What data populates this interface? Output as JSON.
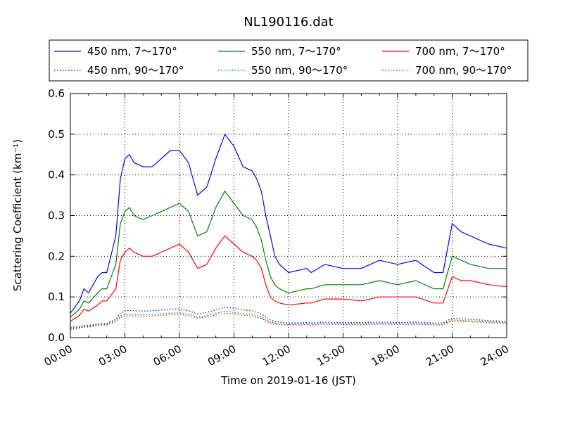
{
  "chart_data": {
    "type": "line",
    "title": "NL190116.dat",
    "xlabel": "Time on 2019-01-16 (JST)",
    "ylabel": "Scattering Coefficient (km⁻¹)",
    "x_unit": "hours",
    "xlim": [
      0,
      24
    ],
    "ylim": [
      0,
      0.6
    ],
    "xticks": [
      0,
      3,
      6,
      9,
      12,
      15,
      18,
      21,
      24
    ],
    "xtick_labels": [
      "00:00",
      "03:00",
      "06:00",
      "09:00",
      "12:00",
      "15:00",
      "18:00",
      "21:00",
      "24:00"
    ],
    "yticks": [
      0.0,
      0.1,
      0.2,
      0.3,
      0.4,
      0.5,
      0.6
    ],
    "ytick_labels": [
      "0.0",
      "0.1",
      "0.2",
      "0.3",
      "0.4",
      "0.5",
      "0.6"
    ],
    "grid": true,
    "legend_position": "top",
    "x": [
      0,
      0.5,
      0.75,
      1,
      1.5,
      1.75,
      2,
      2.5,
      2.75,
      3,
      3.25,
      3.5,
      4,
      4.5,
      5,
      5.5,
      6,
      6.5,
      7,
      7.5,
      8,
      8.5,
      9,
      9.5,
      10,
      10.25,
      10.5,
      10.75,
      11,
      11.25,
      11.5,
      12,
      13,
      13.25,
      14,
      15,
      16,
      17,
      18,
      19,
      20,
      20.5,
      21,
      21.5,
      22,
      23,
      24
    ],
    "series": [
      {
        "name": "450 nm, 7～170°",
        "color": "#0000ff",
        "style": "solid",
        "values": [
          0.06,
          0.09,
          0.12,
          0.11,
          0.15,
          0.16,
          0.16,
          0.25,
          0.39,
          0.44,
          0.45,
          0.43,
          0.42,
          0.42,
          0.44,
          0.46,
          0.46,
          0.43,
          0.35,
          0.37,
          0.44,
          0.5,
          0.47,
          0.42,
          0.41,
          0.39,
          0.36,
          0.3,
          0.25,
          0.2,
          0.18,
          0.16,
          0.17,
          0.16,
          0.18,
          0.17,
          0.17,
          0.19,
          0.18,
          0.19,
          0.16,
          0.16,
          0.28,
          0.26,
          0.25,
          0.23,
          0.22
        ]
      },
      {
        "name": "550 nm, 7～170°",
        "color": "#008000",
        "style": "solid",
        "values": [
          0.05,
          0.07,
          0.09,
          0.085,
          0.11,
          0.12,
          0.12,
          0.18,
          0.28,
          0.31,
          0.32,
          0.3,
          0.29,
          0.3,
          0.31,
          0.32,
          0.33,
          0.31,
          0.25,
          0.26,
          0.32,
          0.36,
          0.33,
          0.3,
          0.29,
          0.27,
          0.24,
          0.19,
          0.15,
          0.13,
          0.12,
          0.11,
          0.12,
          0.12,
          0.13,
          0.13,
          0.13,
          0.14,
          0.13,
          0.14,
          0.12,
          0.12,
          0.2,
          0.19,
          0.18,
          0.17,
          0.17
        ]
      },
      {
        "name": "700 nm, 7～170°",
        "color": "#ff0000",
        "style": "solid",
        "values": [
          0.04,
          0.055,
          0.07,
          0.065,
          0.08,
          0.09,
          0.09,
          0.12,
          0.19,
          0.21,
          0.22,
          0.21,
          0.2,
          0.2,
          0.21,
          0.22,
          0.23,
          0.21,
          0.17,
          0.18,
          0.22,
          0.25,
          0.23,
          0.21,
          0.2,
          0.19,
          0.17,
          0.13,
          0.1,
          0.09,
          0.085,
          0.08,
          0.085,
          0.085,
          0.095,
          0.095,
          0.09,
          0.1,
          0.1,
          0.1,
          0.085,
          0.085,
          0.15,
          0.14,
          0.14,
          0.13,
          0.125
        ]
      },
      {
        "name": "450 nm, 90～170°",
        "color": "#0000ff",
        "style": "dotted",
        "values": [
          0.025,
          0.027,
          0.03,
          0.03,
          0.033,
          0.035,
          0.035,
          0.045,
          0.06,
          0.065,
          0.067,
          0.066,
          0.065,
          0.066,
          0.068,
          0.07,
          0.07,
          0.066,
          0.058,
          0.062,
          0.068,
          0.075,
          0.072,
          0.068,
          0.066,
          0.062,
          0.058,
          0.05,
          0.043,
          0.04,
          0.038,
          0.036,
          0.037,
          0.036,
          0.038,
          0.037,
          0.037,
          0.038,
          0.037,
          0.038,
          0.036,
          0.036,
          0.048,
          0.046,
          0.045,
          0.042,
          0.04
        ]
      },
      {
        "name": "550 nm, 90～170°",
        "color": "#008000",
        "style": "dotted",
        "values": [
          0.022,
          0.025,
          0.028,
          0.028,
          0.031,
          0.033,
          0.033,
          0.042,
          0.053,
          0.057,
          0.058,
          0.057,
          0.056,
          0.057,
          0.059,
          0.06,
          0.061,
          0.058,
          0.051,
          0.054,
          0.06,
          0.065,
          0.062,
          0.059,
          0.057,
          0.054,
          0.05,
          0.044,
          0.038,
          0.036,
          0.034,
          0.033,
          0.034,
          0.033,
          0.035,
          0.034,
          0.034,
          0.035,
          0.034,
          0.035,
          0.033,
          0.033,
          0.044,
          0.042,
          0.041,
          0.039,
          0.037
        ]
      },
      {
        "name": "700 nm, 90～170°",
        "color": "#ff0000",
        "style": "dotted",
        "values": [
          0.02,
          0.023,
          0.026,
          0.026,
          0.029,
          0.031,
          0.031,
          0.039,
          0.049,
          0.053,
          0.054,
          0.053,
          0.052,
          0.053,
          0.055,
          0.056,
          0.057,
          0.054,
          0.048,
          0.05,
          0.056,
          0.06,
          0.058,
          0.055,
          0.053,
          0.05,
          0.047,
          0.041,
          0.035,
          0.033,
          0.032,
          0.031,
          0.032,
          0.031,
          0.033,
          0.032,
          0.032,
          0.033,
          0.032,
          0.033,
          0.031,
          0.031,
          0.041,
          0.04,
          0.039,
          0.037,
          0.035
        ]
      }
    ]
  }
}
